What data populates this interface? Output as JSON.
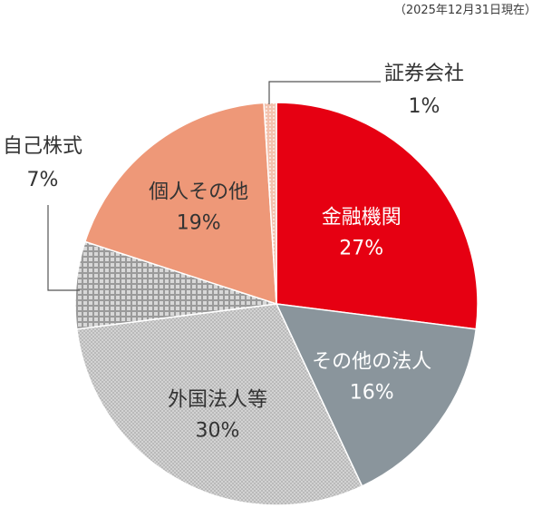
{
  "header": {
    "note": "（2025年12月31日現在）"
  },
  "colors": {
    "financial": "#e60012",
    "other_corp": "#8a959c",
    "foreign": "#c7c7c7",
    "treasury": "#b4b4b4",
    "individual": "#ee9878",
    "securities": "#f0b49e",
    "label_dark": "#333333",
    "label_light": "#ffffff",
    "leader": "#555555"
  },
  "chart_data": {
    "type": "pie",
    "title": "",
    "slices": [
      {
        "name": "金融機関",
        "label": "27%",
        "value": 27,
        "color": "#e60012",
        "pattern": "solid",
        "text_style": "inside-light"
      },
      {
        "name": "その他の法人",
        "label": "16%",
        "value": 16,
        "color": "#8a959c",
        "pattern": "solid",
        "text_style": "inside-light"
      },
      {
        "name": "外国法人等",
        "label": "30%",
        "value": 30,
        "color": "#c7c7c7",
        "pattern": "fine-check",
        "text_style": "inside-dark"
      },
      {
        "name": "自己株式",
        "label": "7%",
        "value": 7,
        "color": "#b4b4b4",
        "pattern": "grid",
        "text_style": "outside"
      },
      {
        "name": "個人その他",
        "label": "19%",
        "value": 19,
        "color": "#ee9878",
        "pattern": "solid",
        "text_style": "inside-dark"
      },
      {
        "name": "証券会社",
        "label": "1%",
        "value": 1,
        "color": "#f0b49e",
        "pattern": "dots",
        "text_style": "outside"
      }
    ]
  }
}
